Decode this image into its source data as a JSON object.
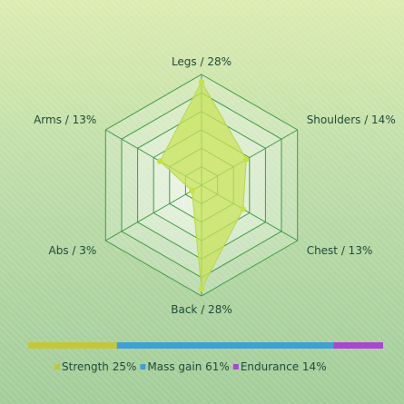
{
  "chart_data": [
    {
      "type": "radar",
      "axes": [
        "Legs / 28%",
        "Shoulders / 14%",
        "Chest / 13%",
        "Back / 28%",
        "Abs / 3%",
        "Arms / 13%"
      ],
      "values": [
        28,
        14,
        13,
        28,
        3,
        13
      ],
      "range": [
        0,
        30
      ],
      "rings": 6,
      "fill_color": "#c8e35a",
      "point_color": "#c6e23c",
      "grid_color": "#3f9c46"
    },
    {
      "type": "bar",
      "orientation": "horizontal-stacked",
      "segments": [
        {
          "label": "Strength 25%",
          "value": 25,
          "color": "#c3c73c"
        },
        {
          "label": "Mass gain 61%",
          "value": 61,
          "color": "#3fa0d6"
        },
        {
          "label": "Endurance 14%",
          "value": 14,
          "color": "#a946d2"
        }
      ],
      "legend": "bottom"
    }
  ]
}
